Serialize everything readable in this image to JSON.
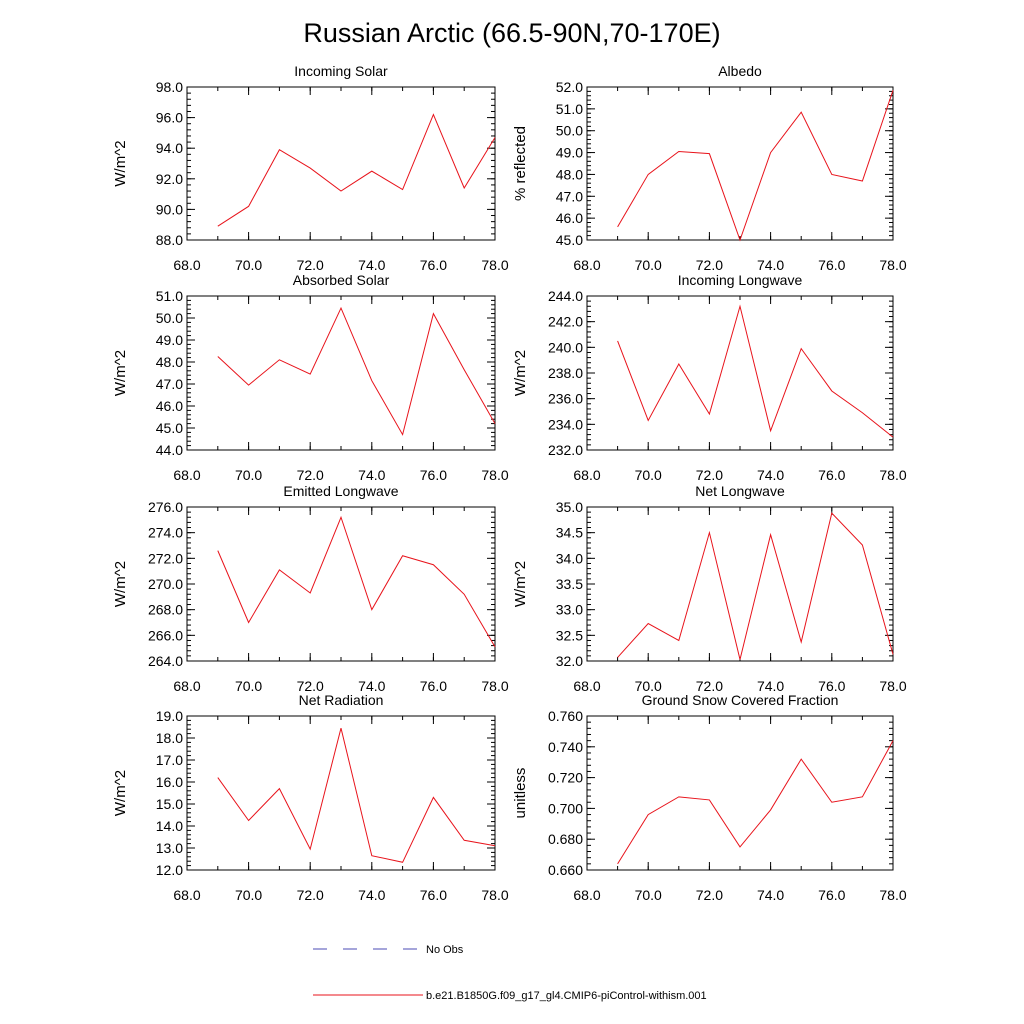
{
  "figure": {
    "title": "Russian Arctic (66.5-90N,70-170E)"
  },
  "legend": {
    "entries": [
      {
        "label": "No Obs",
        "style": "dashed",
        "color": "#4b4bb4"
      },
      {
        "label": "b.e21.B1850G.f09_g17_gl4.CMIP6-piControl-withism.001",
        "style": "solid",
        "color": "#e8131b"
      }
    ]
  },
  "colors": {
    "series": "#e8131b",
    "obs": "#4b4bb4",
    "axis": "#000000"
  },
  "chart_data": [
    {
      "type": "line",
      "title": "Incoming Solar",
      "xlabel": "",
      "ylabel": "W/m^2",
      "xlim": [
        68,
        78
      ],
      "ylim": [
        88,
        98
      ],
      "xticks": [
        68,
        70,
        72,
        74,
        76,
        78
      ],
      "yticks": [
        88,
        90,
        92,
        94,
        96,
        98
      ],
      "xdecimals": 1,
      "ydecimals": 1,
      "series": [
        {
          "name": "b.e21.B1850G.f09_g17_gl4.CMIP6-piControl-withism.001",
          "x": [
            69,
            70,
            71,
            72,
            73,
            74,
            75,
            76,
            77,
            78
          ],
          "y": [
            88.9,
            90.2,
            93.9,
            92.7,
            91.2,
            92.5,
            91.3,
            96.2,
            91.4,
            94.7
          ]
        }
      ]
    },
    {
      "type": "line",
      "title": "Albedo",
      "xlabel": "",
      "ylabel": "% reflected",
      "xlim": [
        68,
        78
      ],
      "ylim": [
        45,
        52
      ],
      "xticks": [
        68,
        70,
        72,
        74,
        76,
        78
      ],
      "yticks": [
        45,
        46,
        47,
        48,
        49,
        50,
        51,
        52
      ],
      "xdecimals": 1,
      "ydecimals": 1,
      "series": [
        {
          "name": "b.e21.B1850G.f09_g17_gl4.CMIP6-piControl-withism.001",
          "x": [
            69,
            70,
            71,
            72,
            73,
            74,
            75,
            76,
            77,
            78
          ],
          "y": [
            45.6,
            48.0,
            49.05,
            48.95,
            45.0,
            49.0,
            50.85,
            48.0,
            47.7,
            51.85
          ]
        }
      ]
    },
    {
      "type": "line",
      "title": "Absorbed Solar",
      "xlabel": "",
      "ylabel": "W/m^2",
      "xlim": [
        68,
        78
      ],
      "ylim": [
        44,
        51
      ],
      "xticks": [
        68,
        70,
        72,
        74,
        76,
        78
      ],
      "yticks": [
        44,
        45,
        46,
        47,
        48,
        49,
        50,
        51
      ],
      "xdecimals": 1,
      "ydecimals": 1,
      "series": [
        {
          "name": "b.e21.B1850G.f09_g17_gl4.CMIP6-piControl-withism.001",
          "x": [
            69,
            70,
            71,
            72,
            73,
            74,
            75,
            76,
            77,
            78
          ],
          "y": [
            48.25,
            46.95,
            48.1,
            47.45,
            50.45,
            47.15,
            44.7,
            50.2,
            47.65,
            45.2
          ]
        }
      ]
    },
    {
      "type": "line",
      "title": "Incoming Longwave",
      "xlabel": "",
      "ylabel": "W/m^2",
      "xlim": [
        68,
        78
      ],
      "ylim": [
        232,
        244
      ],
      "xticks": [
        68,
        70,
        72,
        74,
        76,
        78
      ],
      "yticks": [
        232,
        234,
        236,
        238,
        240,
        242,
        244
      ],
      "xdecimals": 1,
      "ydecimals": 1,
      "series": [
        {
          "name": "b.e21.B1850G.f09_g17_gl4.CMIP6-piControl-withism.001",
          "x": [
            69,
            70,
            71,
            72,
            73,
            74,
            75,
            76,
            77,
            78
          ],
          "y": [
            240.5,
            234.3,
            238.7,
            234.8,
            243.2,
            233.5,
            239.9,
            236.6,
            234.9,
            233.0
          ]
        }
      ]
    },
    {
      "type": "line",
      "title": "Emitted Longwave",
      "xlabel": "",
      "ylabel": "W/m^2",
      "xlim": [
        68,
        78
      ],
      "ylim": [
        264,
        276
      ],
      "xticks": [
        68,
        70,
        72,
        74,
        76,
        78
      ],
      "yticks": [
        264,
        266,
        268,
        270,
        272,
        274,
        276
      ],
      "xdecimals": 1,
      "ydecimals": 1,
      "series": [
        {
          "name": "b.e21.B1850G.f09_g17_gl4.CMIP6-piControl-withism.001",
          "x": [
            69,
            70,
            71,
            72,
            73,
            74,
            75,
            76,
            77,
            78
          ],
          "y": [
            272.6,
            267.0,
            271.1,
            269.3,
            275.2,
            268.0,
            272.2,
            271.5,
            269.2,
            265.1
          ]
        }
      ]
    },
    {
      "type": "line",
      "title": "Net Longwave",
      "xlabel": "",
      "ylabel": "W/m^2",
      "xlim": [
        68,
        78
      ],
      "ylim": [
        32,
        35
      ],
      "xticks": [
        68,
        70,
        72,
        74,
        76,
        78
      ],
      "yticks": [
        32,
        32.5,
        33,
        33.5,
        34,
        34.5,
        35
      ],
      "xdecimals": 1,
      "ydecimals": 1,
      "series": [
        {
          "name": "b.e21.B1850G.f09_g17_gl4.CMIP6-piControl-withism.001",
          "x": [
            69,
            70,
            71,
            72,
            73,
            74,
            75,
            76,
            77,
            78
          ],
          "y": [
            32.07,
            32.73,
            32.4,
            34.5,
            32.03,
            34.46,
            32.37,
            34.88,
            34.26,
            32.13
          ]
        }
      ]
    },
    {
      "type": "line",
      "title": "Net Radiation",
      "xlabel": "",
      "ylabel": "W/m^2",
      "xlim": [
        68,
        78
      ],
      "ylim": [
        12,
        19
      ],
      "xticks": [
        68,
        70,
        72,
        74,
        76,
        78
      ],
      "yticks": [
        12,
        13,
        14,
        15,
        16,
        17,
        18,
        19
      ],
      "xdecimals": 1,
      "ydecimals": 1,
      "series": [
        {
          "name": "b.e21.B1850G.f09_g17_gl4.CMIP6-piControl-withism.001",
          "x": [
            69,
            70,
            71,
            72,
            73,
            74,
            75,
            76,
            77,
            78
          ],
          "y": [
            16.2,
            14.25,
            15.7,
            12.95,
            18.45,
            12.65,
            12.35,
            15.3,
            13.35,
            13.1
          ]
        }
      ]
    },
    {
      "type": "line",
      "title": "Ground Snow Covered Fraction",
      "xlabel": "",
      "ylabel": "unitless",
      "xlim": [
        68,
        78
      ],
      "ylim": [
        0.66,
        0.76
      ],
      "xticks": [
        68,
        70,
        72,
        74,
        76,
        78
      ],
      "yticks": [
        0.66,
        0.68,
        0.7,
        0.72,
        0.74,
        0.76
      ],
      "xdecimals": 1,
      "ydecimals": 3,
      "series": [
        {
          "name": "b.e21.B1850G.f09_g17_gl4.CMIP6-piControl-withism.001",
          "x": [
            69,
            70,
            71,
            72,
            73,
            74,
            75,
            76,
            77,
            78
          ],
          "y": [
            0.664,
            0.696,
            0.7075,
            0.7055,
            0.675,
            0.699,
            0.732,
            0.704,
            0.7075,
            0.744
          ]
        }
      ]
    }
  ]
}
